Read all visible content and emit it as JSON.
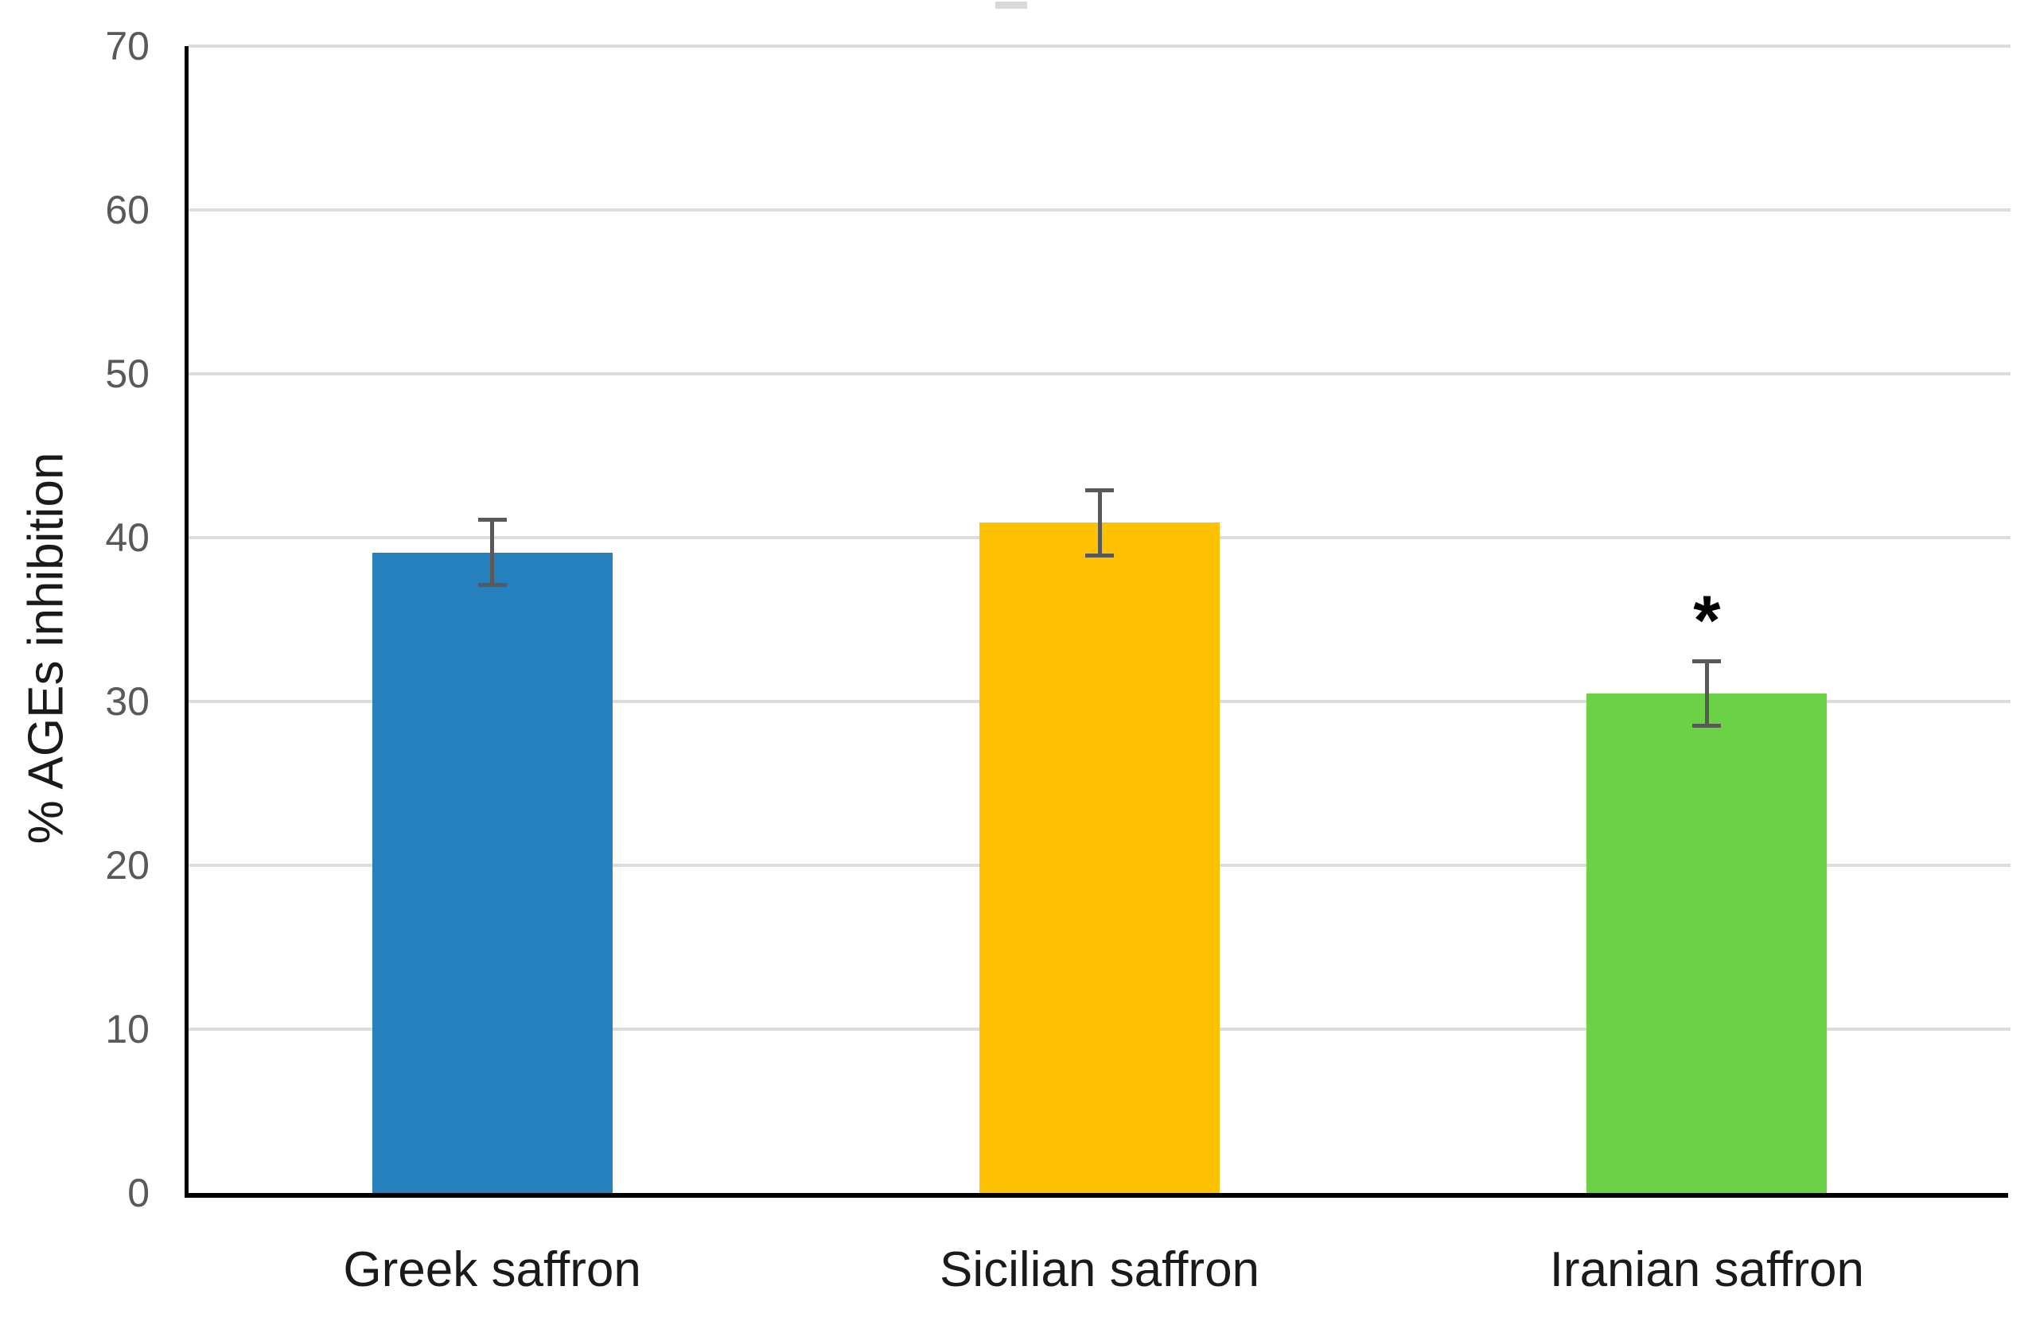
{
  "chart_data": {
    "type": "bar",
    "title": "",
    "xlabel": "",
    "ylabel": "% AGEs inhibition",
    "ylim": [
      0,
      70
    ],
    "yticks": [
      0,
      10,
      20,
      30,
      40,
      50,
      60,
      70
    ],
    "grid": true,
    "legend_position": "none",
    "categories": [
      "Greek saffron",
      "Sicilian saffron",
      "Iranian saffron"
    ],
    "series": [
      {
        "name": "% AGEs inhibition",
        "values": [
          39.1,
          40.9,
          30.5
        ],
        "errors": [
          2.0,
          2.0,
          2.0
        ],
        "bar_colors": [
          "#2780BE",
          "#FFC103",
          "#6BD145"
        ],
        "annotations": [
          "",
          "",
          "*"
        ]
      }
    ]
  },
  "colors": {
    "gridline": "#DCDCDC",
    "axis_line": "#000000",
    "error_bar": "#595959",
    "tick_label": "#595959",
    "category_label": "#1a1a1a",
    "top_artifact": "#D9D9D9"
  }
}
